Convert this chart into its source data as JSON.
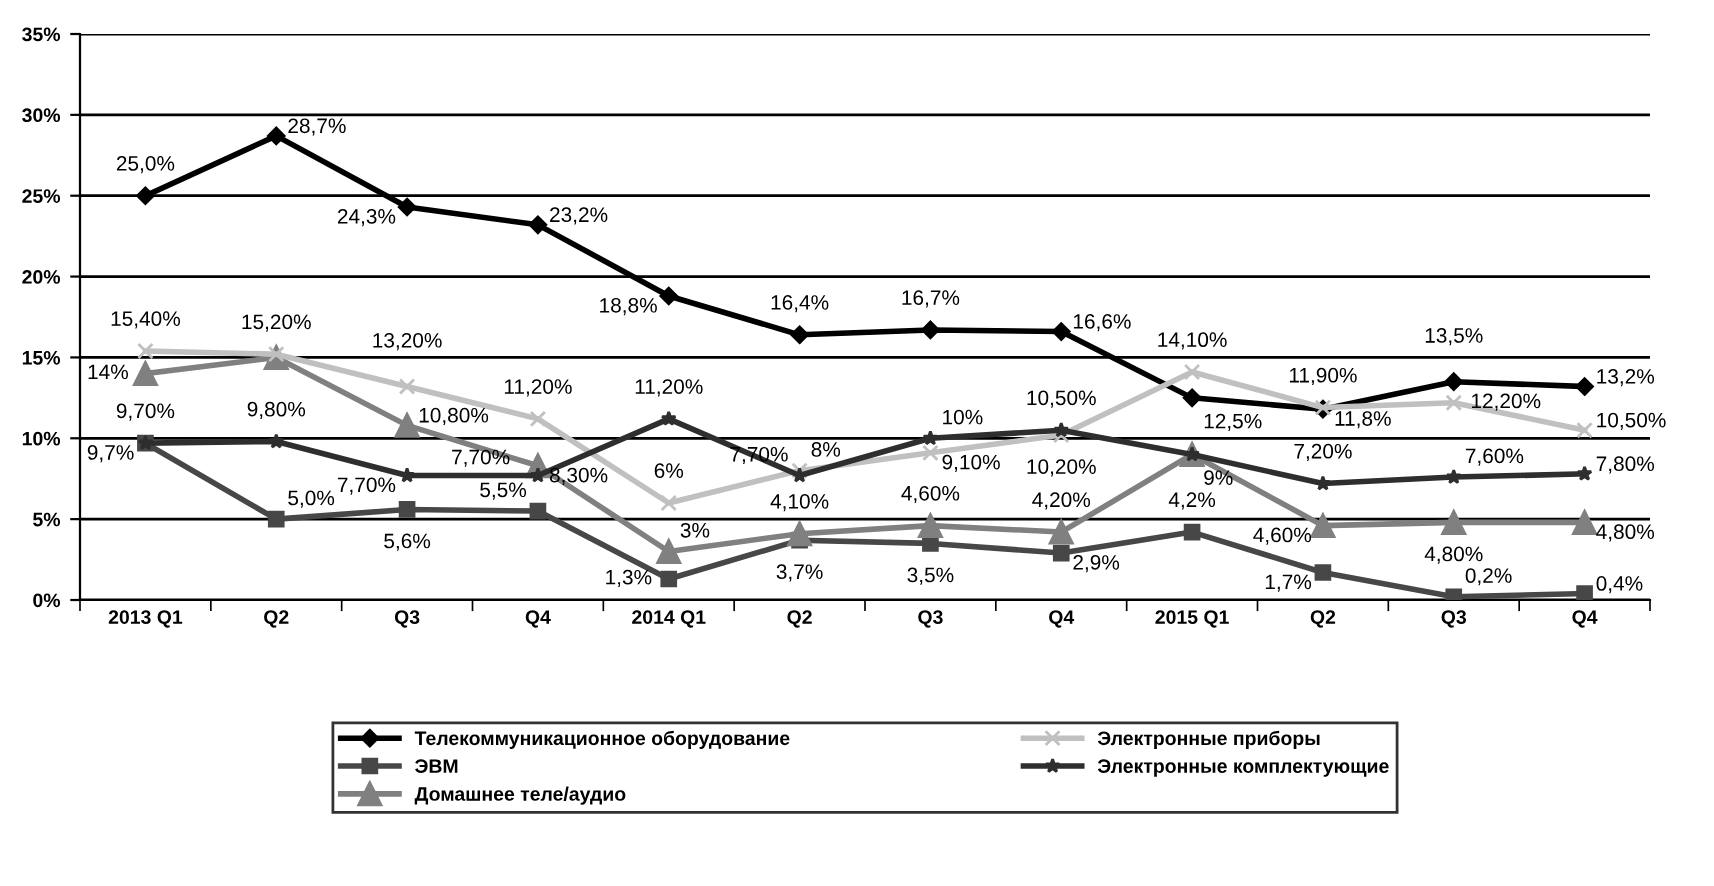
{
  "chart_data": {
    "type": "line",
    "categories": [
      "2013 Q1",
      "Q2",
      "Q3",
      "Q4",
      "2014 Q1",
      "Q2",
      "Q3",
      "Q4",
      "2015 Q1",
      "Q2",
      "Q3",
      "Q4"
    ],
    "series": [
      {
        "name": "Телекоммуникационное оборудование",
        "color": "#000000",
        "marker": "diamond",
        "values": [
          25.0,
          28.7,
          24.3,
          23.2,
          18.8,
          16.4,
          16.7,
          16.6,
          12.5,
          11.8,
          13.5,
          13.2
        ],
        "value_labels": [
          "25,0%",
          "28,7%",
          "24,3%",
          "23,2%",
          "18,8%",
          "16,4%",
          "16,7%",
          "16,6%",
          "12,5%",
          "11,8%",
          "13,5%",
          "13,2%"
        ]
      },
      {
        "name": "ЭВМ",
        "color": "#474747",
        "marker": "square",
        "values": [
          9.7,
          5.0,
          5.6,
          5.5,
          1.3,
          3.7,
          3.5,
          2.9,
          4.2,
          1.7,
          0.2,
          0.4
        ],
        "value_labels": [
          "9,7%",
          "5,0%",
          "5,6%",
          "5,5%",
          "1,3%",
          "3,7%",
          "3,5%",
          "2,9%",
          "4,2%",
          "1,7%",
          "0,2%",
          "0,4%"
        ]
      },
      {
        "name": "Домашнее теле/аудио",
        "color": "#808080",
        "marker": "triangle",
        "values": [
          14,
          15.0,
          10.8,
          8.3,
          3,
          4.1,
          4.6,
          4.2,
          9,
          4.6,
          4.8,
          4.8
        ],
        "value_labels": [
          "14%",
          null,
          "10,80%",
          "8,30%",
          "3%",
          "4,10%",
          "4,60%",
          "4,20%",
          null,
          "4,60%",
          "4,80%",
          "4,80%"
        ]
      },
      {
        "name": "Электронные приборы",
        "color": "#c0c0c0",
        "marker": "cross",
        "values": [
          15.4,
          15.2,
          13.2,
          11.2,
          6,
          8,
          9.1,
          10.2,
          14.1,
          11.9,
          12.2,
          10.5
        ],
        "value_labels": [
          "15,40%",
          "15,20%",
          "13,20%",
          "11,20%",
          "6%",
          "8%",
          "9,10%",
          "10,20%",
          "14,10%",
          "11,90%",
          "12,20%",
          "10,50%"
        ]
      },
      {
        "name": "Электронные комплектующие",
        "color": "#2e2e2e",
        "marker": "star",
        "values": [
          9.7,
          9.8,
          7.7,
          7.7,
          11.2,
          7.7,
          10,
          10.5,
          9,
          7.2,
          7.6,
          7.8
        ],
        "value_labels": [
          "9,70%",
          "9,80%",
          "7,70%",
          "7,70%",
          "11,20%",
          "7,70%",
          "10%",
          "10,50%",
          "9%",
          "7,20%",
          "7,60%",
          "7,80%"
        ]
      }
    ],
    "ylim": [
      0,
      35
    ],
    "yticks": [
      {
        "value": 0,
        "label": "0%"
      },
      {
        "value": 5,
        "label": "5%"
      },
      {
        "value": 10,
        "label": "10%"
      },
      {
        "value": 15,
        "label": "15%"
      },
      {
        "value": 20,
        "label": "20%"
      },
      {
        "value": 25,
        "label": "25%"
      },
      {
        "value": 30,
        "label": "30%"
      },
      {
        "value": 35,
        "label": "35%"
      }
    ],
    "grid": "y",
    "legend": "bottom",
    "line_style": "solid"
  }
}
